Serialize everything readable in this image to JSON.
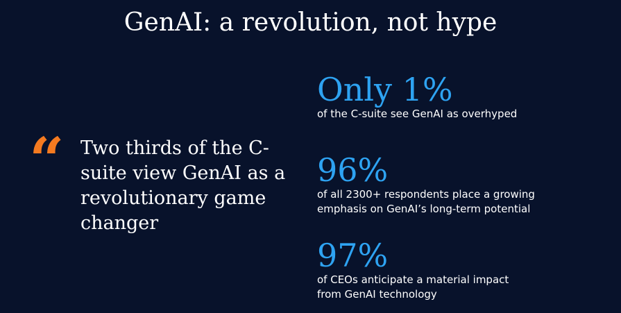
{
  "title": "GenAI: a revolution, not hype",
  "quote": {
    "mark": "“",
    "text": "Two thirds of the C-suite view GenAI as a revolutionary game changer"
  },
  "stats": [
    {
      "value": "Only 1%",
      "description": "of the C-suite see GenAI as overhyped"
    },
    {
      "value": "96%",
      "description": "of all 2300+ respondents place a growing\nemphasis on GenAI’s long-term potential"
    },
    {
      "value": "97%",
      "description": "of CEOs anticipate a material impact\nfrom GenAI technology"
    }
  ],
  "colors": {
    "background": "#08122b",
    "accent_orange": "#f47a20",
    "accent_blue": "#2ea3f2",
    "text": "#ffffff"
  }
}
